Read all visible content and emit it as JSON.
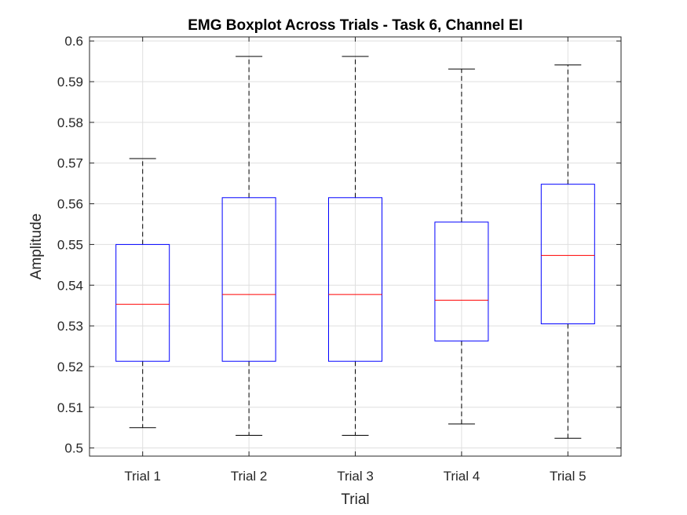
{
  "chart_data": {
    "type": "boxplot",
    "title": "EMG Boxplot Across Trials - Task 6, Channel EI",
    "xlabel": "Trial",
    "ylabel": "Amplitude",
    "ylim": [
      0.498,
      0.601
    ],
    "yticks": [
      0.5,
      0.51,
      0.52,
      0.53,
      0.54,
      0.55,
      0.56,
      0.57,
      0.58,
      0.59,
      0.6
    ],
    "ytick_labels": [
      "0.5",
      "0.51",
      "0.52",
      "0.53",
      "0.54",
      "0.55",
      "0.56",
      "0.57",
      "0.58",
      "0.59",
      "0.6"
    ],
    "grid": true,
    "categories": [
      "Trial 1",
      "Trial 2",
      "Trial 3",
      "Trial 4",
      "Trial 5"
    ],
    "boxes": [
      {
        "category": "Trial 1",
        "whisker_low": 0.505,
        "q1": 0.5213,
        "median": 0.5353,
        "q3": 0.55,
        "whisker_high": 0.5711
      },
      {
        "category": "Trial 2",
        "whisker_low": 0.5031,
        "q1": 0.5213,
        "median": 0.5377,
        "q3": 0.5615,
        "whisker_high": 0.5962
      },
      {
        "category": "Trial 3",
        "whisker_low": 0.5031,
        "q1": 0.5213,
        "median": 0.5377,
        "q3": 0.5615,
        "whisker_high": 0.5962
      },
      {
        "category": "Trial 4",
        "whisker_low": 0.5059,
        "q1": 0.5263,
        "median": 0.5363,
        "q3": 0.5555,
        "whisker_high": 0.5931
      },
      {
        "category": "Trial 5",
        "whisker_low": 0.5024,
        "q1": 0.5305,
        "median": 0.5473,
        "q3": 0.5648,
        "whisker_high": 0.5941
      }
    ],
    "colors": {
      "box": "#0000ff",
      "median": "#ff0000",
      "whisker": "#000000",
      "grid": "#dfdfdf",
      "axis": "#262626"
    }
  }
}
